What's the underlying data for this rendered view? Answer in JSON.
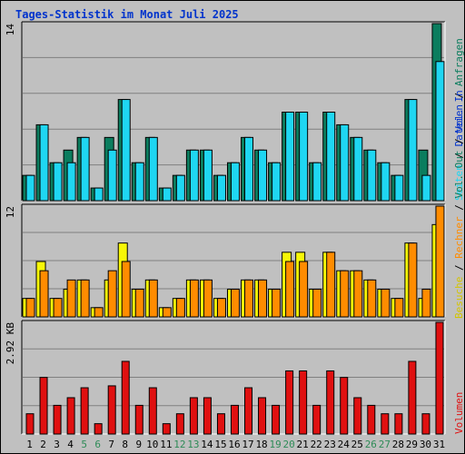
{
  "title": "Tages-Statistik im Monat Juli 2025",
  "colors": {
    "background": "#c0c0c0",
    "panel_shadow": "#808080",
    "gridline": "#808080",
    "title": "#0033cc",
    "anfragen": "#0b7d5e",
    "dateien": "#1fd6f2",
    "besuche": "#f7f707",
    "rechner": "#ff8c00",
    "volumen": "#e01010",
    "weekday_label": "#000000",
    "weekend_label": "#2e8b57",
    "separator": "#000000"
  },
  "legend": {
    "top": {
      "left_labels": [
        "Seiten",
        "Dateien",
        "Anfragen"
      ],
      "left_colors": [
        "#1fd6f2",
        "#0033cc",
        "#0b7d5e"
      ]
    },
    "middle": {
      "labels": [
        "Besuche",
        "Rechner",
        "Vol. Out",
        "Vol. In"
      ],
      "colors": [
        "#d4c400",
        "#ff8c00",
        "#0b7d5e",
        "#0033cc"
      ]
    },
    "bottom": {
      "labels": [
        "Volumen"
      ],
      "colors": [
        "#e01010"
      ]
    }
  },
  "chart_data": [
    {
      "type": "bar",
      "panel": "top",
      "ymax_label": "14",
      "ylim": [
        0,
        14
      ],
      "categories": [
        "1",
        "2",
        "3",
        "4",
        "5",
        "6",
        "7",
        "8",
        "9",
        "10",
        "11",
        "12",
        "13",
        "14",
        "15",
        "16",
        "17",
        "18",
        "19",
        "20",
        "21",
        "22",
        "23",
        "24",
        "25",
        "26",
        "27",
        "28",
        "29",
        "30",
        "31"
      ],
      "series": [
        {
          "name": "Anfragen",
          "values": [
            2,
            6,
            3,
            4,
            5,
            1,
            5,
            8,
            3,
            5,
            1,
            2,
            4,
            4,
            2,
            3,
            5,
            4,
            3,
            7,
            7,
            3,
            7,
            6,
            5,
            4,
            3,
            2,
            8,
            4,
            14
          ]
        },
        {
          "name": "Dateien",
          "values": [
            2,
            6,
            3,
            3,
            5,
            1,
            4,
            8,
            3,
            5,
            1,
            2,
            4,
            4,
            2,
            3,
            5,
            4,
            3,
            7,
            7,
            3,
            7,
            6,
            5,
            4,
            3,
            2,
            8,
            2,
            11
          ]
        }
      ]
    },
    {
      "type": "bar",
      "panel": "middle",
      "ymax_label": "12",
      "ylim": [
        0,
        12
      ],
      "categories": [
        "1",
        "2",
        "3",
        "4",
        "5",
        "6",
        "7",
        "8",
        "9",
        "10",
        "11",
        "12",
        "13",
        "14",
        "15",
        "16",
        "17",
        "18",
        "19",
        "20",
        "21",
        "22",
        "23",
        "24",
        "25",
        "26",
        "27",
        "28",
        "29",
        "30",
        "31"
      ],
      "series": [
        {
          "name": "Besuche",
          "values": [
            2,
            6,
            2,
            3,
            4,
            1,
            4,
            8,
            3,
            4,
            1,
            2,
            4,
            4,
            2,
            3,
            4,
            4,
            3,
            7,
            7,
            3,
            7,
            5,
            5,
            4,
            3,
            2,
            8,
            2,
            10
          ]
        },
        {
          "name": "Rechner",
          "values": [
            2,
            5,
            2,
            4,
            4,
            1,
            5,
            6,
            3,
            4,
            1,
            2,
            4,
            4,
            2,
            3,
            4,
            4,
            3,
            6,
            6,
            3,
            7,
            5,
            5,
            4,
            3,
            2,
            8,
            3,
            12
          ]
        }
      ]
    },
    {
      "type": "bar",
      "panel": "bottom",
      "ymax_label": "2.92 KB",
      "ylim": [
        0,
        2.92
      ],
      "categories": [
        "1",
        "2",
        "3",
        "4",
        "5",
        "6",
        "7",
        "8",
        "9",
        "10",
        "11",
        "12",
        "13",
        "14",
        "15",
        "16",
        "17",
        "18",
        "19",
        "20",
        "21",
        "22",
        "23",
        "24",
        "25",
        "26",
        "27",
        "28",
        "29",
        "30",
        "31"
      ],
      "series": [
        {
          "name": "Volumen",
          "values": [
            0.53,
            1.48,
            0.75,
            0.95,
            1.21,
            0.27,
            1.26,
            1.9,
            0.75,
            1.21,
            0.27,
            0.53,
            0.95,
            0.95,
            0.53,
            0.75,
            1.21,
            0.95,
            0.75,
            1.65,
            1.65,
            0.75,
            1.65,
            1.48,
            0.95,
            0.75,
            0.53,
            0.53,
            1.9,
            0.53,
            2.92
          ]
        }
      ]
    }
  ],
  "x_axis": {
    "labels": [
      "1",
      "2",
      "3",
      "4",
      "5",
      "6",
      "7",
      "8",
      "9",
      "10",
      "11",
      "12",
      "13",
      "14",
      "15",
      "16",
      "17",
      "18",
      "19",
      "20",
      "21",
      "22",
      "23",
      "24",
      "25",
      "26",
      "27",
      "28",
      "29",
      "30",
      "31"
    ],
    "weekend_days": [
      "5",
      "6",
      "12",
      "13",
      "19",
      "20",
      "26",
      "27"
    ]
  }
}
